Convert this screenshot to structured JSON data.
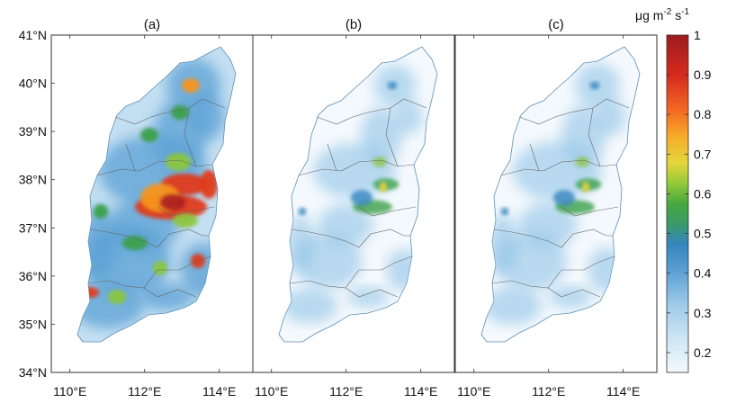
{
  "panels": [
    {
      "label": "(a)",
      "intensity": 1.0
    },
    {
      "label": "(b)",
      "intensity": 0.42
    },
    {
      "label": "(c)",
      "intensity": 0.55
    }
  ],
  "axes": {
    "y_ticks": [
      "41°N",
      "40°N",
      "39°N",
      "38°N",
      "37°N",
      "36°N",
      "35°N",
      "34°N"
    ],
    "y_values": [
      41,
      40,
      39,
      38,
      37,
      36,
      35,
      34
    ],
    "x_ticks": [
      "110°E",
      "112°E",
      "114°E"
    ],
    "x_values": [
      110,
      112,
      114
    ],
    "lon_range": [
      109.5,
      114.9
    ],
    "lat_range": [
      34,
      41
    ]
  },
  "colorbar": {
    "unit_base": "μg m",
    "unit_exp1": "-2",
    "unit_mid": " s",
    "unit_exp2": "-1",
    "ticks": [
      "1",
      "0.9",
      "0.8",
      "0.7",
      "0.6",
      "0.5",
      "0.4",
      "0.3",
      "0.2"
    ],
    "tick_values": [
      1,
      0.9,
      0.8,
      0.7,
      0.6,
      0.5,
      0.4,
      0.3,
      0.2
    ],
    "range": [
      0.15,
      1.0
    ],
    "colors": [
      "#eef7fc",
      "#cfe6f5",
      "#8fc3e6",
      "#4a96cc",
      "#2f7fbe",
      "#3aa04a",
      "#8cc63f",
      "#f0d43a",
      "#f7941d",
      "#e03a1e",
      "#a81e22"
    ]
  }
}
